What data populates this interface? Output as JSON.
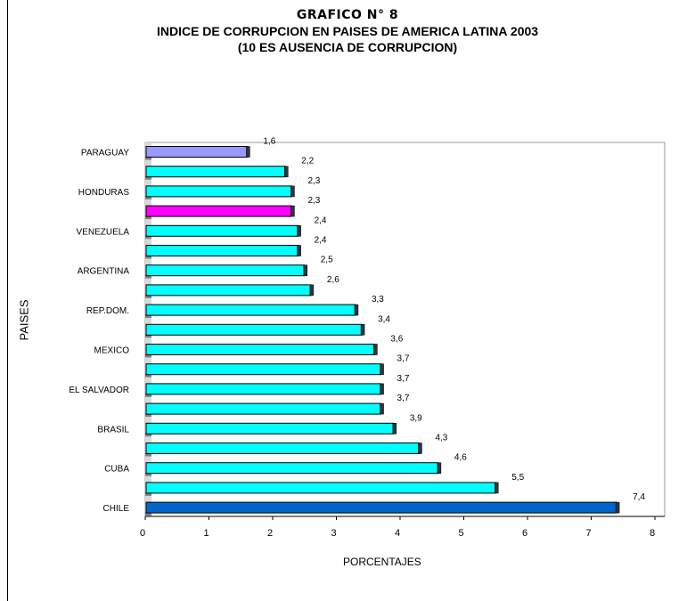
{
  "title_lines": {
    "line1": "GRAFICO  N° 8",
    "line2": "INDICE DE CORRUPCION EN PAISES DE AMERICA  LATINA 2003",
    "line3": "(10 ES AUSENCIA DE CORRUPCION)"
  },
  "chart_data": {
    "type": "bar",
    "orientation": "horizontal",
    "title": "INDICE DE CORRUPCION EN PAISES DE AMERICA  LATINA 2003",
    "subtitle": "(10 ES AUSENCIA DE CORRUPCION)",
    "xlabel": "PORCENTAJES",
    "ylabel": "PAISES",
    "xlim": [
      0,
      8
    ],
    "x_ticks": [
      "0",
      "1",
      "2",
      "3",
      "4",
      "5",
      "6",
      "7",
      "8"
    ],
    "grid": false,
    "legend": "none",
    "categories": [
      "PARAGUAY",
      "",
      "HONDURAS",
      "",
      "VENEZUELA",
      "",
      "ARGENTINA",
      "",
      "REP.DOM.",
      "",
      "MEXICO",
      "",
      "EL SALVADOR",
      "",
      "BRASIL",
      "",
      "CUBA",
      "",
      "CHILE"
    ],
    "values": [
      1.6,
      2.2,
      2.3,
      2.3,
      2.4,
      2.4,
      2.5,
      2.6,
      3.3,
      3.4,
      3.6,
      3.7,
      3.7,
      3.7,
      3.9,
      4.3,
      4.6,
      5.5,
      7.4
    ],
    "value_labels": [
      "1,6",
      "2,2",
      "2,3",
      "2,3",
      "2,4",
      "2,4",
      "2,5",
      "2,6",
      "3,3",
      "3,4",
      "3,6",
      "3,7",
      "3,7",
      "3,7",
      "3,9",
      "4,3",
      "4,6",
      "5,5",
      "7,4"
    ],
    "bar_colors": [
      "#9999ff",
      "#00ffff",
      "#00ffff",
      "#ff00ff",
      "#00ffff",
      "#00ffff",
      "#00ffff",
      "#00ffff",
      "#00ffff",
      "#00ffff",
      "#00ffff",
      "#00ffff",
      "#00ffff",
      "#00ffff",
      "#00ffff",
      "#00ffff",
      "#00ffff",
      "#00ffff",
      "#0066cc"
    ]
  }
}
